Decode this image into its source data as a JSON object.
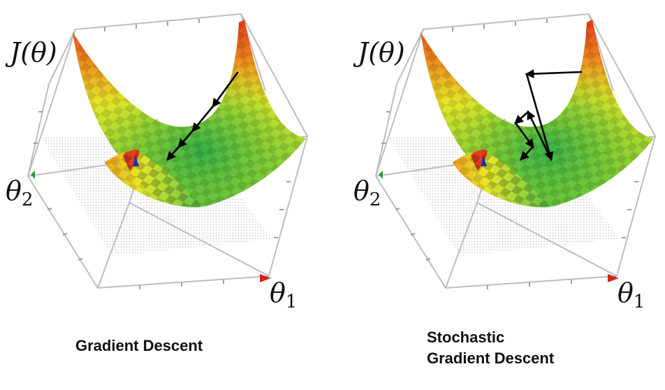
{
  "panels": [
    {
      "id": "gd",
      "ylabel_main": "J(θ)",
      "theta2_label": "θ",
      "theta2_sub": "2",
      "theta1_label": "θ",
      "theta1_sub": "1",
      "caption_lines": [
        "Gradient Descent"
      ],
      "arrow_color": "#000000"
    },
    {
      "id": "sgd",
      "ylabel_main": "J(θ)",
      "theta2_label": "θ",
      "theta2_sub": "2",
      "theta1_label": "θ",
      "theta1_sub": "1",
      "caption_lines": [
        "Stochastic",
        "Gradient Descent"
      ],
      "arrow_color": "#000000"
    }
  ],
  "colors": {
    "surface_high": "#e53a17",
    "surface_mid": "#e6e82a",
    "surface_low": "#34b24a",
    "box": "#bdbdbd",
    "plane": "#d9d9d9",
    "min_marker": "#2233aa",
    "axis_theta1": "#d0281e",
    "axis_theta2": "#2a9a2a"
  }
}
